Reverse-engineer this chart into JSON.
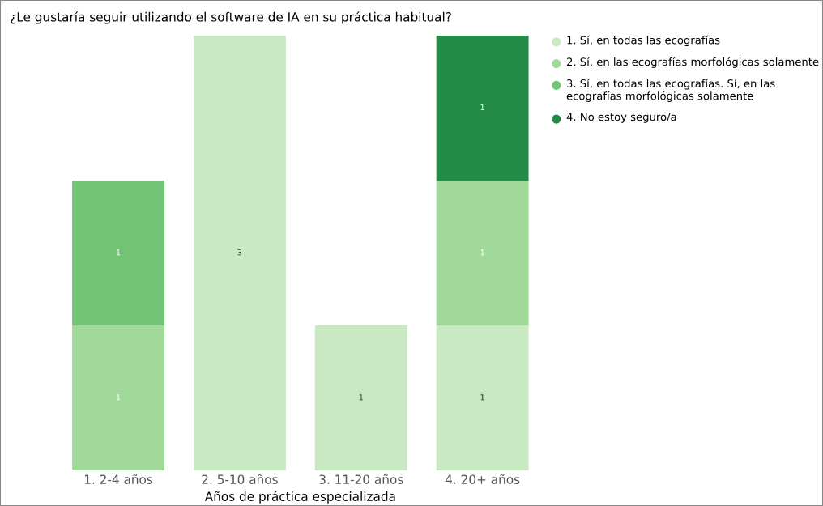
{
  "chart_data": {
    "type": "bar",
    "title": "¿Le gustaría seguir utilizando el software de IA en su práctica habitual?",
    "xlabel": "Años de práctica especializada",
    "categories": [
      "1. 2-4 años",
      "2. 5-10 años",
      "3. 11-20 años",
      "4. 20+ años"
    ],
    "stacked": true,
    "data_labels": true,
    "legend": "top right",
    "grid": false,
    "series": [
      {
        "name": "1. Sí, en todas las ecografías",
        "color": "#c8e9c1",
        "values": [
          null,
          3,
          1,
          1
        ]
      },
      {
        "name": "2. Sí, en las ecografías morfológicas solamente",
        "color": "#a1d99b",
        "values": [
          1,
          null,
          null,
          1
        ]
      },
      {
        "name": "3. Sí, en todas las ecografías. Sí, en las ecografías morfológicas solamente",
        "color": "#74c476",
        "values": [
          1,
          null,
          null,
          null
        ]
      },
      {
        "name": "4. No estoy seguro/a",
        "color": "#238b45",
        "values": [
          null,
          null,
          null,
          1
        ]
      }
    ]
  }
}
